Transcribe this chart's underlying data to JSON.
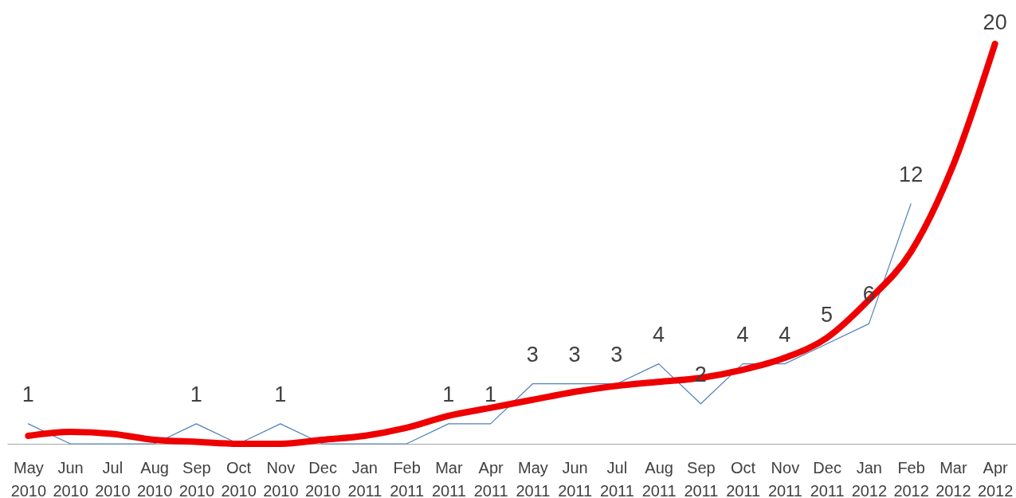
{
  "chart_data": {
    "type": "line",
    "categories": [
      "May 2010",
      "Jun 2010",
      "Jul 2010",
      "Aug 2010",
      "Sep 2010",
      "Oct 2010",
      "Nov 2010",
      "Dec 2010",
      "Jan 2011",
      "Feb 2011",
      "Mar 2011",
      "Apr 2011",
      "May 2011",
      "Jun 2011",
      "Jul 2011",
      "Aug 2011",
      "Sep 2011",
      "Oct 2011",
      "Nov 2011",
      "Dec 2011",
      "Jan 2012",
      "Feb 2012",
      "Mar 2012",
      "Apr 2012"
    ],
    "series": [
      {
        "color": "#4f81bd",
        "values": [
          1,
          0,
          0,
          0,
          1,
          0,
          1,
          0,
          0,
          0,
          1,
          1,
          3,
          3,
          3,
          4,
          2,
          4,
          4,
          5,
          6,
          12,
          null,
          null
        ],
        "value_labels": [
          "1",
          null,
          null,
          null,
          "1",
          null,
          "1",
          null,
          null,
          null,
          "1",
          "1",
          "3",
          "3",
          "3",
          "4",
          "2",
          "4",
          "4",
          "5",
          "6",
          "12",
          null,
          null
        ]
      },
      {
        "color": "#ee0000",
        "values": [
          0.4,
          0.6,
          0.5,
          0.2,
          0.1,
          0,
          0,
          0.2,
          0.4,
          0.8,
          1.4,
          1.8,
          2.2,
          2.6,
          2.9,
          3.1,
          3.3,
          3.7,
          4.3,
          5.3,
          7.2,
          9.6,
          13.9,
          20
        ],
        "value_labels": [
          null,
          null,
          null,
          null,
          null,
          null,
          null,
          null,
          null,
          null,
          null,
          null,
          null,
          null,
          null,
          null,
          null,
          null,
          null,
          null,
          null,
          null,
          null,
          "20"
        ]
      }
    ],
    "tick_labels": "x"
  }
}
